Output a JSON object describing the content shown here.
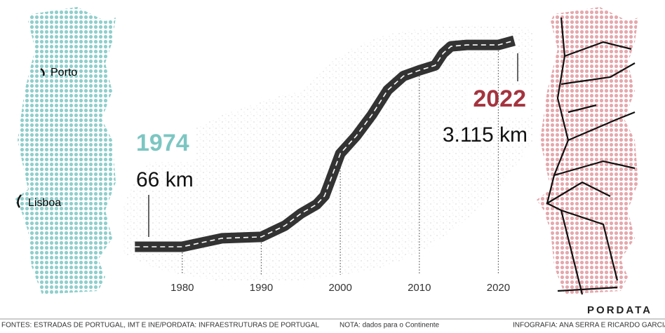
{
  "chart_data": {
    "type": "line",
    "labels": {
      "porto": "Porto",
      "lisboa": "Lisboa",
      "brand": "PORDATA"
    },
    "start": {
      "year": "1974",
      "value": "66 km"
    },
    "end": {
      "year": "2022",
      "value": "3.115 km"
    },
    "x": [
      1974,
      1980,
      1985,
      1990,
      1993,
      1995,
      1997,
      1998,
      1999,
      2000,
      2002,
      2004,
      2006,
      2008,
      2010,
      2012,
      2013,
      2014,
      2016,
      2020,
      2022
    ],
    "series": [
      {
        "name": "km",
        "color": "#333333",
        "values": [
          66,
          66,
          191,
          212,
          379,
          557,
          692,
          818,
          1131,
          1444,
          1705,
          2018,
          2384,
          2592,
          2676,
          2749,
          2927,
          3031,
          3052,
          3052,
          3115
        ]
      }
    ],
    "xlim": [
      1973.8,
      2024.4
    ],
    "xticks": [
      1980,
      1990,
      2000,
      2010,
      2020
    ],
    "ylim": [
      66,
      3115
    ],
    "footer": {
      "sources": "FONTES: ESTRADAS DE PORTUGAL, IMT E INE/PORDATA: INFRAESTRUTURAS DE PORTUGAL",
      "note": "NOTA: dados para o Continente",
      "credits": "INFOGRAFIA: ANA SERRA E RICARDO GARCIA"
    }
  }
}
